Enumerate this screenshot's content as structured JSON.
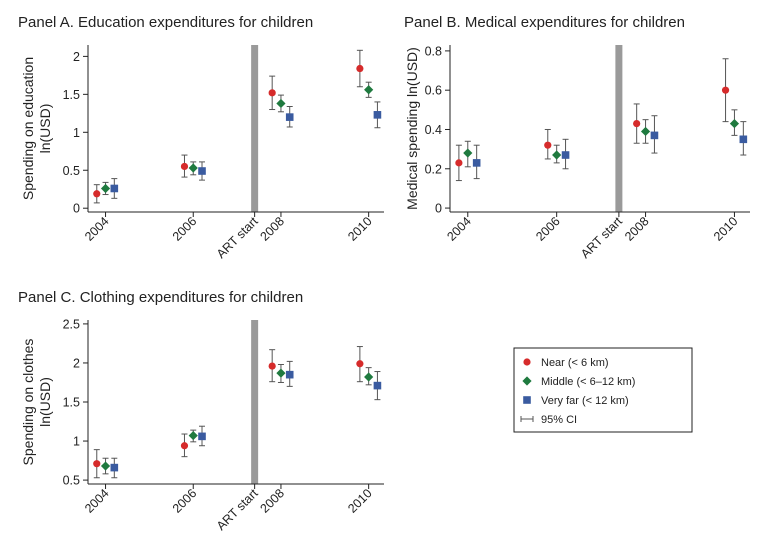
{
  "colors": {
    "near": "#d62b2b",
    "middle": "#1f7a3f",
    "far": "#3a5ba0",
    "ci": "#555555",
    "art_band": "#9a9a9a"
  },
  "legend": {
    "items": [
      {
        "label": "Near (< 6 km)",
        "series": "near",
        "marker": "circle"
      },
      {
        "label": "Middle (< 6–12 km)",
        "series": "middle",
        "marker": "diamond"
      },
      {
        "label": "Very far (< 12 km)",
        "series": "far",
        "marker": "square"
      },
      {
        "label": "95% CI",
        "series": "ci",
        "marker": "errorbar"
      }
    ]
  },
  "chart_data": [
    {
      "id": "A",
      "type": "scatter",
      "title": "Panel A. Education expenditures for children",
      "ylabel_lines": [
        "Spending on education",
        "ln(USD)"
      ],
      "categories": [
        "2004",
        "2006",
        "ART start",
        "2008",
        "2010"
      ],
      "x_positions": [
        2004,
        2006,
        2007.4,
        2008,
        2010
      ],
      "xlim": [
        2003.6,
        2010.35
      ],
      "ylim": [
        -0.05,
        2.15
      ],
      "yticks": [
        0,
        0.5,
        1,
        1.5,
        2
      ],
      "ytick_labels": [
        "0",
        "0.5",
        "1",
        "1.5",
        "2"
      ],
      "art_start_x": 2007.4,
      "series": [
        {
          "key": "near",
          "name": "Near (< 6 km)",
          "points": [
            {
              "x": 2003.8,
              "y": 0.19,
              "lo": 0.07,
              "hi": 0.31
            },
            {
              "x": 2005.8,
              "y": 0.55,
              "lo": 0.41,
              "hi": 0.7
            },
            {
              "x": 2007.8,
              "y": 1.52,
              "lo": 1.3,
              "hi": 1.74
            },
            {
              "x": 2009.8,
              "y": 1.84,
              "lo": 1.6,
              "hi": 2.08
            }
          ]
        },
        {
          "key": "middle",
          "name": "Middle (< 6–12 km)",
          "points": [
            {
              "x": 2004.0,
              "y": 0.26,
              "lo": 0.18,
              "hi": 0.34
            },
            {
              "x": 2006.0,
              "y": 0.53,
              "lo": 0.44,
              "hi": 0.61
            },
            {
              "x": 2008.0,
              "y": 1.38,
              "lo": 1.27,
              "hi": 1.49
            },
            {
              "x": 2010.0,
              "y": 1.56,
              "lo": 1.46,
              "hi": 1.66
            }
          ]
        },
        {
          "key": "far",
          "name": "Very far (< 12 km)",
          "points": [
            {
              "x": 2004.2,
              "y": 0.26,
              "lo": 0.13,
              "hi": 0.39
            },
            {
              "x": 2006.2,
              "y": 0.49,
              "lo": 0.37,
              "hi": 0.61
            },
            {
              "x": 2008.2,
              "y": 1.2,
              "lo": 1.07,
              "hi": 1.34
            },
            {
              "x": 2010.2,
              "y": 1.23,
              "lo": 1.06,
              "hi": 1.4
            }
          ]
        }
      ]
    },
    {
      "id": "B",
      "type": "scatter",
      "title": "Panel B. Medical expenditures for children",
      "ylabel_lines": [
        "Medical spending ln(USD)"
      ],
      "categories": [
        "2004",
        "2006",
        "ART start",
        "2008",
        "2010"
      ],
      "x_positions": [
        2004,
        2006,
        2007.4,
        2008,
        2010
      ],
      "xlim": [
        2003.6,
        2010.35
      ],
      "ylim": [
        -0.02,
        0.83
      ],
      "yticks": [
        0,
        0.2,
        0.4,
        0.6,
        0.8
      ],
      "ytick_labels": [
        "0",
        "0.2",
        "0.4",
        "0.6",
        "0.8"
      ],
      "art_start_x": 2007.4,
      "series": [
        {
          "key": "near",
          "name": "Near (< 6 km)",
          "points": [
            {
              "x": 2003.8,
              "y": 0.23,
              "lo": 0.14,
              "hi": 0.32
            },
            {
              "x": 2005.8,
              "y": 0.32,
              "lo": 0.25,
              "hi": 0.4
            },
            {
              "x": 2007.8,
              "y": 0.43,
              "lo": 0.33,
              "hi": 0.53
            },
            {
              "x": 2009.8,
              "y": 0.6,
              "lo": 0.44,
              "hi": 0.76
            }
          ]
        },
        {
          "key": "middle",
          "name": "Middle (< 6–12 km)",
          "points": [
            {
              "x": 2004.0,
              "y": 0.28,
              "lo": 0.21,
              "hi": 0.34
            },
            {
              "x": 2006.0,
              "y": 0.27,
              "lo": 0.23,
              "hi": 0.32
            },
            {
              "x": 2008.0,
              "y": 0.39,
              "lo": 0.33,
              "hi": 0.45
            },
            {
              "x": 2010.0,
              "y": 0.43,
              "lo": 0.37,
              "hi": 0.5
            }
          ]
        },
        {
          "key": "far",
          "name": "Very far (< 12 km)",
          "points": [
            {
              "x": 2004.2,
              "y": 0.23,
              "lo": 0.15,
              "hi": 0.32
            },
            {
              "x": 2006.2,
              "y": 0.27,
              "lo": 0.2,
              "hi": 0.35
            },
            {
              "x": 2008.2,
              "y": 0.37,
              "lo": 0.28,
              "hi": 0.47
            },
            {
              "x": 2010.2,
              "y": 0.35,
              "lo": 0.27,
              "hi": 0.44
            }
          ]
        }
      ]
    },
    {
      "id": "C",
      "type": "scatter",
      "title": "Panel C. Clothing expenditures for children",
      "ylabel_lines": [
        "Spending on clothes",
        "ln(USD)"
      ],
      "categories": [
        "2004",
        "2006",
        "ART start",
        "2008",
        "2010"
      ],
      "x_positions": [
        2004,
        2006,
        2007.4,
        2008,
        2010
      ],
      "xlim": [
        2003.6,
        2010.35
      ],
      "ylim": [
        0.45,
        2.55
      ],
      "yticks": [
        0.5,
        1,
        1.5,
        2,
        2.5
      ],
      "ytick_labels": [
        "0.5",
        "1",
        "1.5",
        "2",
        "2.5"
      ],
      "art_start_x": 2007.4,
      "series": [
        {
          "key": "near",
          "name": "Near (< 6 km)",
          "points": [
            {
              "x": 2003.8,
              "y": 0.71,
              "lo": 0.53,
              "hi": 0.89
            },
            {
              "x": 2005.8,
              "y": 0.94,
              "lo": 0.8,
              "hi": 1.09
            },
            {
              "x": 2007.8,
              "y": 1.96,
              "lo": 1.76,
              "hi": 2.17
            },
            {
              "x": 2009.8,
              "y": 1.99,
              "lo": 1.76,
              "hi": 2.21
            }
          ]
        },
        {
          "key": "middle",
          "name": "Middle (< 6–12 km)",
          "points": [
            {
              "x": 2004.0,
              "y": 0.68,
              "lo": 0.58,
              "hi": 0.78
            },
            {
              "x": 2006.0,
              "y": 1.07,
              "lo": 0.99,
              "hi": 1.14
            },
            {
              "x": 2008.0,
              "y": 1.87,
              "lo": 1.75,
              "hi": 1.98
            },
            {
              "x": 2010.0,
              "y": 1.82,
              "lo": 1.72,
              "hi": 1.94
            }
          ]
        },
        {
          "key": "far",
          "name": "Very far (< 12 km)",
          "points": [
            {
              "x": 2004.2,
              "y": 0.66,
              "lo": 0.53,
              "hi": 0.78
            },
            {
              "x": 2006.2,
              "y": 1.06,
              "lo": 0.94,
              "hi": 1.19
            },
            {
              "x": 2008.2,
              "y": 1.85,
              "lo": 1.7,
              "hi": 2.02
            },
            {
              "x": 2010.2,
              "y": 1.71,
              "lo": 1.53,
              "hi": 1.89
            }
          ]
        }
      ]
    }
  ]
}
